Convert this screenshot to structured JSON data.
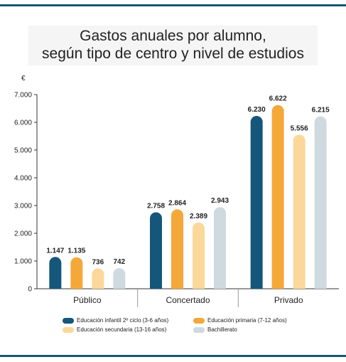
{
  "chart_data": {
    "type": "bar",
    "title_lines": [
      "Gastos anuales por alumno,",
      "según tipo de centro y nivel de estudios"
    ],
    "ylabel": "€",
    "ylim": [
      0,
      7000
    ],
    "yticks": [
      0,
      1000,
      2000,
      3000,
      4000,
      5000,
      6000,
      7000
    ],
    "ytick_labels": [
      "0",
      "1.000",
      "2.000",
      "3.000",
      "4.000",
      "5.000",
      "6.000",
      "7.000"
    ],
    "categories": [
      "Público",
      "Concertado",
      "Privado"
    ],
    "series": [
      {
        "name": "Educación infantil 2º ciclo (3-6 años)",
        "color": "#14577a",
        "values": [
          1147,
          2758,
          6230
        ],
        "labels": [
          "1.147",
          "2.758",
          "6.230"
        ]
      },
      {
        "name": "Educación primaria (7-12 años)",
        "color": "#f5a83a",
        "values": [
          1135,
          2864,
          6622
        ],
        "labels": [
          "1.135",
          "2.864",
          "6.622"
        ]
      },
      {
        "name": "Educación secundaria (13-16 años)",
        "color": "#fbd89a",
        "values": [
          736,
          2389,
          5556
        ],
        "labels": [
          "736",
          "2.389",
          "5.556"
        ]
      },
      {
        "name": "Bachillerato",
        "color": "#cfd9e0",
        "values": [
          742,
          2943,
          6215
        ],
        "labels": [
          "742",
          "2.943",
          "6.215"
        ]
      }
    ],
    "grid": false,
    "legend_position": "bottom"
  },
  "colors": {
    "rule": "#1a5572",
    "axis": "#333333"
  }
}
